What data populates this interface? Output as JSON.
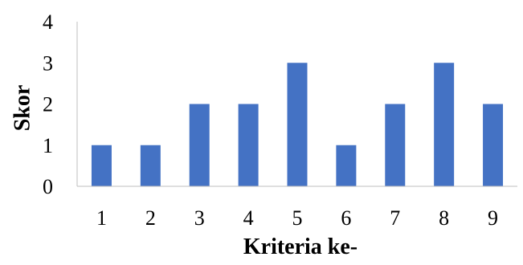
{
  "chart_data": {
    "type": "bar",
    "categories": [
      "1",
      "2",
      "3",
      "4",
      "5",
      "6",
      "7",
      "8",
      "9"
    ],
    "values": [
      1,
      1,
      2,
      2,
      3,
      1,
      2,
      3,
      2
    ],
    "title": "",
    "xlabel": "Kriteria ke-",
    "ylabel": "Skor",
    "ylim": [
      0,
      4
    ],
    "yticks": [
      "0",
      "1",
      "2",
      "3",
      "4"
    ],
    "grid": false,
    "legend": "none",
    "bar_color": "#4472C4",
    "axis_color": "#BFBFBF"
  }
}
